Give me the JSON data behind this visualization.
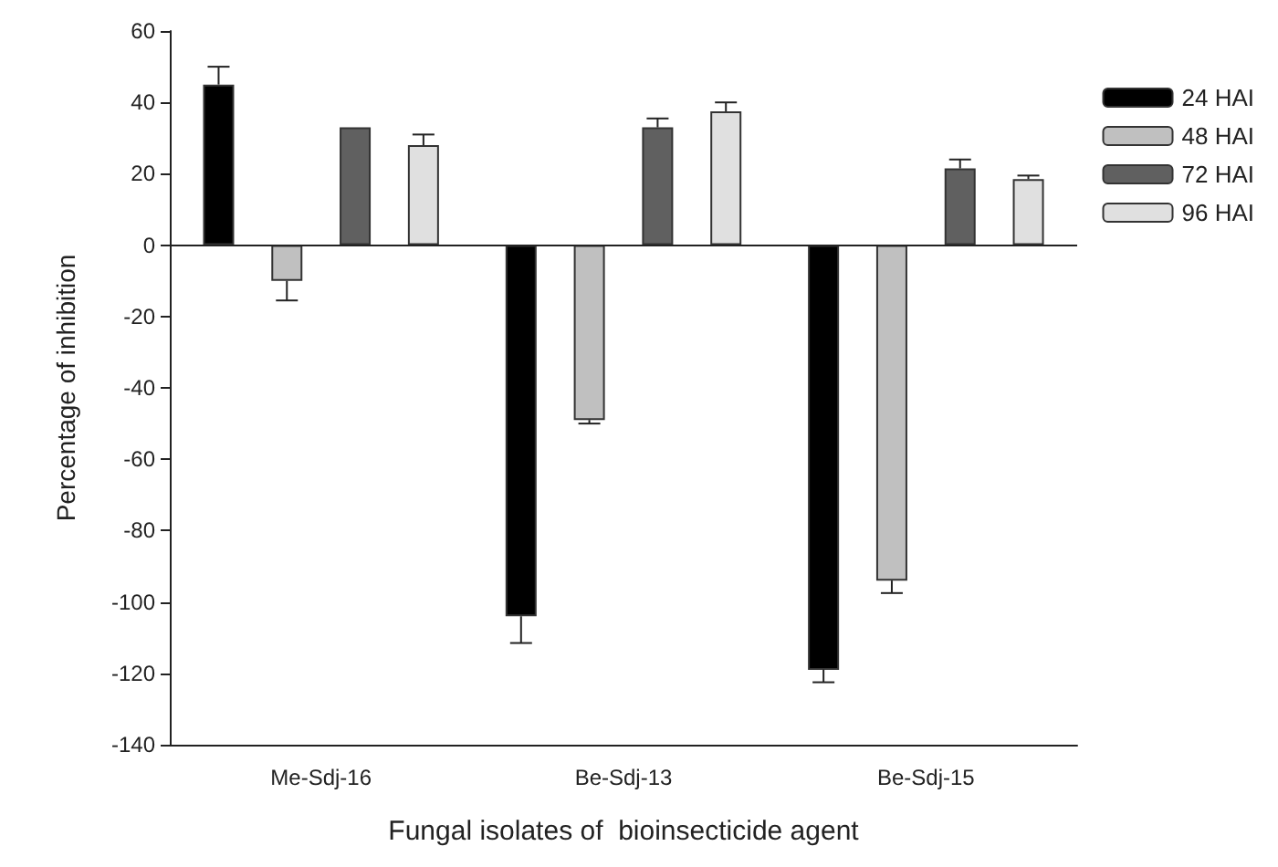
{
  "chart_data": {
    "type": "bar",
    "xlabel": "Fungal isolates of  bioinsecticide agent",
    "ylabel": "Percentage of inhibition",
    "categories": [
      "Me-Sdj-16",
      "Be-Sdj-13",
      "Be-Sdj-15"
    ],
    "series": [
      {
        "name": "24 HAI",
        "color": "#000000",
        "values": [
          45,
          -104,
          -119
        ],
        "errors": [
          5,
          7.5,
          3.5
        ]
      },
      {
        "name": "48 HAI",
        "color": "#c0c0c0",
        "values": [
          -10,
          -49,
          -94
        ],
        "errors": [
          5.5,
          1,
          3.5
        ]
      },
      {
        "name": "72 HAI",
        "color": "#606060",
        "values": [
          33,
          33,
          21.5
        ],
        "errors": [
          null,
          2.5,
          2.5
        ]
      },
      {
        "name": "96 HAI",
        "color": "#e0e0e0",
        "values": [
          28,
          37.5,
          18.5
        ],
        "errors": [
          3,
          2.5,
          1
        ]
      }
    ],
    "ylim": [
      -140,
      60
    ],
    "yticks": [
      -140,
      -120,
      -100,
      -80,
      -60,
      -40,
      -20,
      0,
      20,
      40,
      60
    ],
    "ref_lines": [
      {
        "axis": "y",
        "value": 0,
        "color": "#222222"
      }
    ],
    "grid": false,
    "legend": "top right"
  }
}
